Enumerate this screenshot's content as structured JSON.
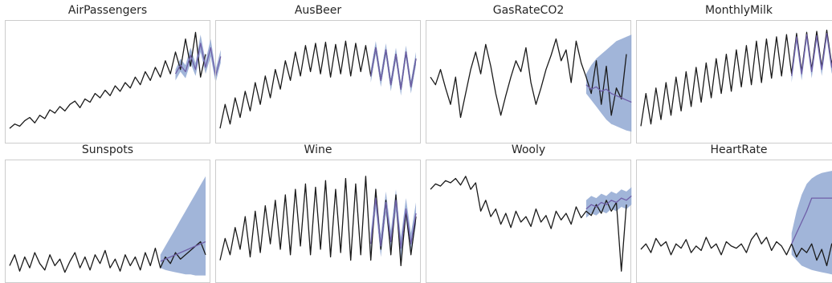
{
  "colors": {
    "history": "#1a1a1a",
    "forecast": "#6f5fa8",
    "band": "#91a8d2",
    "frame": "#cccccc"
  },
  "chart_data": [
    {
      "type": "line",
      "title": "AirPassengers",
      "grid": false,
      "legend": "none",
      "series": [
        {
          "role": "history",
          "values": [
            0.08,
            0.12,
            0.1,
            0.15,
            0.18,
            0.13,
            0.2,
            0.17,
            0.25,
            0.22,
            0.28,
            0.24,
            0.3,
            0.33,
            0.27,
            0.35,
            0.32,
            0.4,
            0.36,
            0.43,
            0.38,
            0.47,
            0.42,
            0.5,
            0.45,
            0.55,
            0.48,
            0.6,
            0.52,
            0.64,
            0.55,
            0.7,
            0.58,
            0.78,
            0.62,
            0.9,
            0.65,
            0.96,
            0.55,
            0.76
          ]
        },
        {
          "role": "forecast",
          "start": 33,
          "values": [
            0.58,
            0.66,
            0.6,
            0.75,
            0.62,
            0.86,
            0.64,
            0.82,
            0.56,
            0.74
          ]
        }
      ],
      "band": {
        "start": 33,
        "upper": [
          0.62,
          0.72,
          0.66,
          0.82,
          0.68,
          0.94,
          0.7,
          0.9,
          0.62,
          0.8
        ],
        "lower": [
          0.52,
          0.6,
          0.54,
          0.68,
          0.56,
          0.78,
          0.58,
          0.74,
          0.5,
          0.68
        ]
      }
    },
    {
      "type": "line",
      "title": "AusBeer",
      "grid": false,
      "legend": "none",
      "series": [
        {
          "role": "history",
          "values": [
            0.08,
            0.3,
            0.12,
            0.36,
            0.18,
            0.42,
            0.24,
            0.5,
            0.3,
            0.56,
            0.36,
            0.62,
            0.44,
            0.7,
            0.52,
            0.78,
            0.56,
            0.84,
            0.6,
            0.86,
            0.58,
            0.87,
            0.55,
            0.85,
            0.58,
            0.88,
            0.56,
            0.86,
            0.6,
            0.84,
            0.56,
            0.82,
            0.52,
            0.8,
            0.48,
            0.76,
            0.44,
            0.78,
            0.46,
            0.72
          ]
        },
        {
          "role": "forecast",
          "start": 30,
          "values": [
            0.56,
            0.82,
            0.52,
            0.8,
            0.48,
            0.76,
            0.44,
            0.78,
            0.46,
            0.72
          ]
        }
      ],
      "band": {
        "start": 30,
        "upper": [
          0.62,
          0.88,
          0.58,
          0.86,
          0.54,
          0.82,
          0.5,
          0.84,
          0.52,
          0.78
        ],
        "lower": [
          0.5,
          0.76,
          0.46,
          0.74,
          0.42,
          0.7,
          0.38,
          0.72,
          0.4,
          0.66
        ]
      }
    },
    {
      "type": "line",
      "title": "GasRateCO2",
      "grid": false,
      "legend": "none",
      "series": [
        {
          "role": "history",
          "values": [
            0.55,
            0.48,
            0.62,
            0.45,
            0.3,
            0.55,
            0.18,
            0.4,
            0.62,
            0.78,
            0.58,
            0.85,
            0.65,
            0.4,
            0.2,
            0.38,
            0.55,
            0.7,
            0.6,
            0.82,
            0.5,
            0.3,
            0.45,
            0.62,
            0.75,
            0.9,
            0.7,
            0.8,
            0.5,
            0.88,
            0.68,
            0.55,
            0.4,
            0.7,
            0.3,
            0.65,
            0.2,
            0.45,
            0.35,
            0.76
          ]
        },
        {
          "role": "forecast",
          "start": 31,
          "values": [
            0.48,
            0.44,
            0.46,
            0.42,
            0.44,
            0.4,
            0.38,
            0.36,
            0.34,
            0.32
          ]
        }
      ],
      "band": {
        "start": 31,
        "upper": [
          0.58,
          0.66,
          0.72,
          0.76,
          0.8,
          0.84,
          0.88,
          0.9,
          0.92,
          0.94
        ],
        "lower": [
          0.4,
          0.34,
          0.28,
          0.22,
          0.16,
          0.12,
          0.1,
          0.08,
          0.06,
          0.05
        ]
      }
    },
    {
      "type": "line",
      "title": "MonthlyMilk",
      "grid": false,
      "legend": "none",
      "series": [
        {
          "role": "history",
          "values": [
            0.1,
            0.4,
            0.12,
            0.45,
            0.16,
            0.5,
            0.2,
            0.55,
            0.24,
            0.6,
            0.28,
            0.64,
            0.32,
            0.68,
            0.36,
            0.72,
            0.4,
            0.76,
            0.42,
            0.8,
            0.46,
            0.84,
            0.48,
            0.88,
            0.5,
            0.9,
            0.54,
            0.92,
            0.56,
            0.94,
            0.58,
            0.95,
            0.6,
            0.96,
            0.62,
            0.97,
            0.64,
            0.98,
            0.66,
            0.99
          ]
        },
        {
          "role": "forecast",
          "start": 30,
          "values": [
            0.56,
            0.92,
            0.58,
            0.94,
            0.6,
            0.93,
            0.62,
            0.95,
            0.64,
            0.96
          ]
        }
      ],
      "band": {
        "start": 30,
        "upper": [
          0.62,
          0.97,
          0.64,
          0.98,
          0.66,
          0.98,
          0.68,
          0.99,
          0.7,
          0.99
        ],
        "lower": [
          0.5,
          0.86,
          0.52,
          0.88,
          0.54,
          0.88,
          0.56,
          0.9,
          0.58,
          0.92
        ]
      }
    },
    {
      "type": "line",
      "title": "Sunspots",
      "grid": false,
      "legend": "none",
      "series": [
        {
          "role": "history",
          "values": [
            0.1,
            0.2,
            0.05,
            0.18,
            0.08,
            0.22,
            0.12,
            0.06,
            0.2,
            0.1,
            0.16,
            0.04,
            0.14,
            0.22,
            0.08,
            0.18,
            0.06,
            0.2,
            0.12,
            0.24,
            0.08,
            0.16,
            0.05,
            0.2,
            0.1,
            0.18,
            0.06,
            0.22,
            0.1,
            0.26,
            0.08,
            0.18,
            0.12,
            0.22,
            0.16,
            0.2,
            0.24,
            0.28,
            0.32,
            0.2
          ]
        },
        {
          "role": "forecast",
          "start": 30,
          "values": [
            0.14,
            0.16,
            0.18,
            0.2,
            0.22,
            0.24,
            0.26,
            0.28,
            0.3,
            0.32
          ]
        }
      ],
      "band": {
        "start": 30,
        "upper": [
          0.2,
          0.28,
          0.36,
          0.44,
          0.52,
          0.6,
          0.68,
          0.76,
          0.84,
          0.92
        ],
        "lower": [
          0.08,
          0.06,
          0.05,
          0.04,
          0.03,
          0.02,
          0.02,
          0.01,
          0.01,
          0.01
        ]
      }
    },
    {
      "type": "line",
      "title": "Wine",
      "grid": false,
      "legend": "none",
      "series": [
        {
          "role": "history",
          "values": [
            0.15,
            0.35,
            0.2,
            0.45,
            0.25,
            0.55,
            0.18,
            0.6,
            0.22,
            0.65,
            0.3,
            0.7,
            0.25,
            0.75,
            0.2,
            0.8,
            0.28,
            0.85,
            0.2,
            0.82,
            0.25,
            0.88,
            0.18,
            0.8,
            0.22,
            0.9,
            0.15,
            0.85,
            0.2,
            0.92,
            0.15,
            0.8,
            0.25,
            0.7,
            0.2,
            0.75,
            0.1,
            0.6,
            0.2,
            0.55
          ]
        },
        {
          "role": "forecast",
          "start": 30,
          "values": [
            0.3,
            0.72,
            0.28,
            0.68,
            0.32,
            0.7,
            0.26,
            0.62,
            0.3,
            0.58
          ]
        }
      ],
      "band": {
        "start": 30,
        "upper": [
          0.4,
          0.82,
          0.38,
          0.78,
          0.42,
          0.8,
          0.36,
          0.72,
          0.4,
          0.68
        ],
        "lower": [
          0.2,
          0.62,
          0.18,
          0.58,
          0.22,
          0.6,
          0.16,
          0.52,
          0.2,
          0.48
        ]
      }
    },
    {
      "type": "line",
      "title": "Wooly",
      "grid": false,
      "legend": "none",
      "series": [
        {
          "role": "history",
          "values": [
            0.8,
            0.85,
            0.83,
            0.88,
            0.86,
            0.9,
            0.84,
            0.92,
            0.8,
            0.86,
            0.6,
            0.7,
            0.55,
            0.62,
            0.48,
            0.58,
            0.45,
            0.6,
            0.5,
            0.55,
            0.46,
            0.62,
            0.5,
            0.56,
            0.44,
            0.6,
            0.52,
            0.58,
            0.48,
            0.64,
            0.54,
            0.6,
            0.56,
            0.66,
            0.58,
            0.7,
            0.6,
            0.68,
            0.05,
            0.66
          ]
        },
        {
          "role": "forecast",
          "start": 31,
          "values": [
            0.62,
            0.66,
            0.64,
            0.68,
            0.66,
            0.7,
            0.68,
            0.72,
            0.7,
            0.74
          ]
        }
      ],
      "band": {
        "start": 31,
        "upper": [
          0.7,
          0.74,
          0.72,
          0.76,
          0.74,
          0.78,
          0.76,
          0.8,
          0.78,
          0.82
        ],
        "lower": [
          0.54,
          0.58,
          0.56,
          0.6,
          0.58,
          0.62,
          0.6,
          0.64,
          0.62,
          0.66
        ]
      }
    },
    {
      "type": "line",
      "title": "HeartRate",
      "grid": false,
      "legend": "none",
      "series": [
        {
          "role": "history",
          "values": [
            0.25,
            0.3,
            0.22,
            0.35,
            0.28,
            0.32,
            0.2,
            0.3,
            0.26,
            0.34,
            0.22,
            0.28,
            0.24,
            0.36,
            0.26,
            0.3,
            0.2,
            0.32,
            0.28,
            0.26,
            0.3,
            0.22,
            0.34,
            0.4,
            0.3,
            0.36,
            0.24,
            0.32,
            0.28,
            0.2,
            0.3,
            0.18,
            0.26,
            0.22,
            0.3,
            0.15,
            0.25,
            0.1,
            0.3,
            0.2
          ]
        },
        {
          "role": "forecast",
          "start": 30,
          "values": [
            0.3,
            0.4,
            0.5,
            0.6,
            0.72,
            0.72,
            0.72,
            0.72,
            0.72,
            0.72
          ]
        }
      ],
      "band": {
        "start": 30,
        "upper": [
          0.4,
          0.6,
          0.75,
          0.85,
          0.9,
          0.93,
          0.95,
          0.96,
          0.97,
          0.98
        ],
        "lower": [
          0.2,
          0.15,
          0.1,
          0.08,
          0.06,
          0.05,
          0.04,
          0.03,
          0.02,
          0.01
        ]
      }
    }
  ]
}
